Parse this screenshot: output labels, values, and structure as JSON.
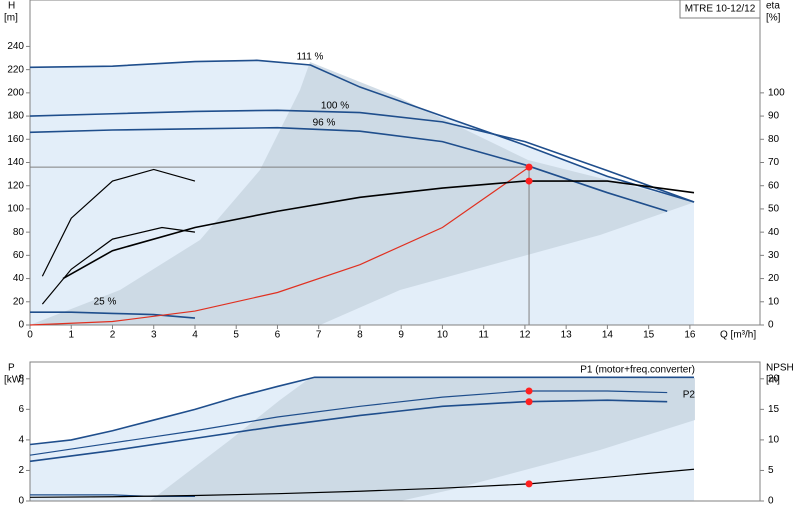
{
  "chart_data": [
    {
      "type": "line",
      "title": "MTRE 10-12/12",
      "x_label": "Q [m³/h]",
      "y_label": "H",
      "y_unit": "[m]",
      "y2_label": "eta",
      "y2_unit": "[%]",
      "xlim": [
        0,
        17.7
      ],
      "xticks": [
        0,
        1,
        2,
        3,
        4,
        5,
        6,
        7,
        8,
        9,
        10,
        11,
        12,
        13,
        14,
        15,
        16
      ],
      "ylim": [
        0,
        280
      ],
      "yticks": [
        0,
        20,
        40,
        60,
        80,
        100,
        120,
        140,
        160,
        180,
        200,
        220,
        240
      ],
      "y2lim": [
        0,
        140
      ],
      "y2ticks": [
        0,
        10,
        20,
        30,
        40,
        50,
        60,
        70,
        80,
        90,
        100
      ],
      "series": [
        {
          "name": "111 %",
          "color": "#1f4e8c",
          "x": [
            0,
            2,
            4,
            5.5,
            6.8,
            8,
            10,
            12,
            14,
            16.1
          ],
          "values": [
            222,
            223,
            227,
            228,
            224,
            205,
            180,
            155,
            128,
            106
          ]
        },
        {
          "name": "100 %",
          "color": "#1f4e8c",
          "x": [
            0,
            2,
            4,
            6,
            8,
            10,
            12,
            14,
            16.1
          ],
          "values": [
            180,
            182,
            184,
            185,
            183,
            175,
            158,
            133,
            106
          ]
        },
        {
          "name": "96 %",
          "color": "#1f4e8c",
          "x": [
            0,
            2,
            4,
            6,
            8,
            10,
            12,
            14,
            15.45
          ],
          "values": [
            166,
            168,
            169,
            170,
            167,
            158,
            138,
            114,
            98
          ]
        },
        {
          "name": "25 %",
          "color": "#1f4e8c",
          "x": [
            0,
            1,
            2,
            3,
            4
          ],
          "values": [
            11,
            11,
            10,
            9,
            6
          ]
        },
        {
          "color": "#e03020",
          "x": [
            0,
            2,
            4,
            6,
            8,
            10,
            12.1
          ],
          "values": [
            0,
            3,
            12,
            28,
            52,
            84,
            136
          ]
        },
        {
          "color": "#000000",
          "axis": "y2",
          "x": [
            0.8,
            2,
            4,
            6,
            8,
            10,
            12,
            14,
            16.1
          ],
          "values": [
            20,
            32,
            42,
            49,
            55,
            59,
            62,
            62,
            57
          ]
        },
        {
          "color": "#000000",
          "axis": "y2",
          "x": [
            0.3,
            1,
            2,
            3,
            4
          ],
          "values": [
            21,
            46,
            62,
            67,
            62
          ]
        },
        {
          "color": "#000000",
          "axis": "y2",
          "x": [
            0.3,
            1,
            2,
            3.2,
            4
          ],
          "values": [
            9,
            24,
            37,
            42,
            40
          ]
        }
      ],
      "points": [
        {
          "x": 12.1,
          "y": 136
        },
        {
          "x": 12.1,
          "y": 62,
          "axis": "y2"
        }
      ]
    },
    {
      "type": "line",
      "y_label": "P",
      "y_unit": "[kW]",
      "y2_label": "NPSH",
      "y2_unit": "[m]",
      "xlim": [
        0,
        17.7
      ],
      "ylim": [
        0,
        9.1
      ],
      "yticks": [
        0,
        2,
        4,
        6,
        8
      ],
      "y2lim": [
        0,
        22.75
      ],
      "y2ticks": [
        0,
        5,
        10,
        15,
        20
      ],
      "series": [
        {
          "name": "P1 (motor+freq.converter)",
          "color": "#1f4e8c",
          "x": [
            0,
            1,
            2,
            3,
            4,
            5,
            6,
            6.9,
            8,
            10,
            12,
            14,
            16.1
          ],
          "values": [
            3.7,
            4.0,
            4.6,
            5.3,
            6.0,
            6.8,
            7.5,
            8.1,
            8.1,
            8.1,
            8.1,
            8.1,
            8.1
          ]
        },
        {
          "color": "#1f4e8c",
          "x": [
            0,
            2,
            4,
            6,
            8,
            10,
            12,
            14,
            15.45
          ],
          "values": [
            3.0,
            3.8,
            4.6,
            5.5,
            6.2,
            6.8,
            7.2,
            7.2,
            7.1
          ]
        },
        {
          "name": "P2",
          "color": "#1f4e8c",
          "x": [
            0,
            2,
            4,
            6,
            8,
            10,
            12,
            14,
            15.45
          ],
          "values": [
            2.6,
            3.3,
            4.1,
            4.9,
            5.6,
            6.2,
            6.5,
            6.6,
            6.5
          ]
        },
        {
          "color": "#1f4e8c",
          "x": [
            0,
            1,
            2,
            3,
            4
          ],
          "values": [
            0.4,
            0.4,
            0.4,
            0.3,
            0.3
          ]
        },
        {
          "color": "#000000",
          "axis": "y2",
          "x": [
            0,
            2,
            4,
            6,
            8,
            10,
            12.1,
            14,
            16.1
          ],
          "values": [
            0.6,
            0.7,
            0.9,
            1.2,
            1.6,
            2.1,
            2.8,
            3.9,
            5.2
          ]
        }
      ],
      "points": [
        {
          "x": 12.1,
          "y": 7.2
        },
        {
          "x": 12.1,
          "y": 6.5
        },
        {
          "x": 12.1,
          "y": 2.8,
          "axis": "y2"
        }
      ]
    }
  ]
}
